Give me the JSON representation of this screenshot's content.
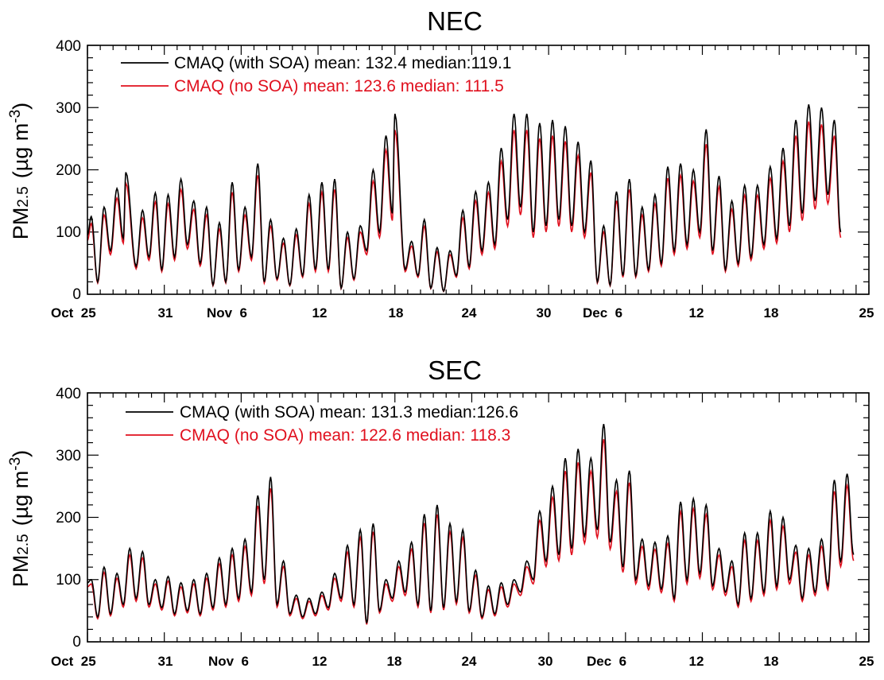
{
  "colors": {
    "with_soa": "#000000",
    "no_soa": "#e0101e",
    "axis": "#000000"
  },
  "chart_data": [
    {
      "type": "line",
      "title": "NEC",
      "ylabel_main": "PM",
      "ylabel_sub": "2.5",
      "ylabel_unit": "(µg m",
      "ylabel_exp": "-3",
      "ylabel_close": ")",
      "ylim": [
        0,
        400
      ],
      "yticks": [
        "0",
        "100",
        "200",
        "300",
        "400"
      ],
      "xlim_days": [
        0,
        61
      ],
      "xtick_labels": [
        "Oct  25",
        "31",
        "Nov  6",
        "12",
        "18",
        "24",
        "30",
        "Dec  6",
        "12",
        "18",
        "25"
      ],
      "legend_position": "top-left",
      "series": [
        {
          "name": "CMAQ (with SOA) mean: 132.4 median:119.1",
          "color": "#000000",
          "peaks": [
            [
              0.3,
              125
            ],
            [
              1.3,
              140
            ],
            [
              2.3,
              170
            ],
            [
              3.0,
              196
            ],
            [
              4.3,
              135
            ],
            [
              5.3,
              163
            ],
            [
              6.3,
              160
            ],
            [
              7.3,
              185
            ],
            [
              8.3,
              150
            ],
            [
              9.3,
              140
            ],
            [
              10.3,
              115
            ],
            [
              11.3,
              180
            ],
            [
              12.3,
              140
            ],
            [
              13.3,
              210
            ],
            [
              14.3,
              120
            ],
            [
              15.3,
              90
            ],
            [
              16.3,
              105
            ],
            [
              17.3,
              160
            ],
            [
              18.3,
              180
            ],
            [
              19.3,
              185
            ],
            [
              20.3,
              100
            ],
            [
              21.3,
              110
            ],
            [
              22.3,
              200
            ],
            [
              23.3,
              255
            ],
            [
              24.0,
              290
            ],
            [
              25.3,
              85
            ],
            [
              26.3,
              120
            ],
            [
              27.3,
              75
            ],
            [
              28.3,
              70
            ],
            [
              29.3,
              135
            ],
            [
              30.3,
              165
            ],
            [
              31.3,
              180
            ],
            [
              32.3,
              235
            ],
            [
              33.3,
              290
            ],
            [
              34.3,
              290
            ],
            [
              35.3,
              275
            ],
            [
              36.3,
              280
            ],
            [
              37.3,
              270
            ],
            [
              38.3,
              245
            ],
            [
              39.3,
              215
            ],
            [
              40.3,
              110
            ],
            [
              41.3,
              165
            ],
            [
              42.3,
              185
            ],
            [
              43.3,
              140
            ],
            [
              44.3,
              160
            ],
            [
              45.3,
              205
            ],
            [
              46.3,
              210
            ],
            [
              47.3,
              200
            ],
            [
              48.3,
              265
            ],
            [
              49.3,
              190
            ],
            [
              50.3,
              150
            ],
            [
              51.3,
              175
            ],
            [
              52.3,
              175
            ],
            [
              53.3,
              205
            ],
            [
              54.3,
              235
            ],
            [
              55.3,
              280
            ],
            [
              56.3,
              305
            ],
            [
              57.3,
              300
            ],
            [
              58.3,
              280
            ]
          ],
          "troughs": [
            [
              0.8,
              20
            ],
            [
              1.8,
              70
            ],
            [
              2.8,
              90
            ],
            [
              3.8,
              45
            ],
            [
              4.8,
              60
            ],
            [
              5.8,
              40
            ],
            [
              6.8,
              60
            ],
            [
              7.8,
              80
            ],
            [
              8.8,
              50
            ],
            [
              9.8,
              15
            ],
            [
              10.8,
              20
            ],
            [
              11.8,
              40
            ],
            [
              12.8,
              60
            ],
            [
              13.8,
              20
            ],
            [
              14.8,
              25
            ],
            [
              15.8,
              15
            ],
            [
              16.8,
              30
            ],
            [
              17.8,
              40
            ],
            [
              18.8,
              40
            ],
            [
              19.8,
              10
            ],
            [
              20.8,
              25
            ],
            [
              21.8,
              70
            ],
            [
              22.8,
              100
            ],
            [
              23.8,
              130
            ],
            [
              24.8,
              40
            ],
            [
              25.8,
              30
            ],
            [
              26.8,
              10
            ],
            [
              27.8,
              5
            ],
            [
              28.8,
              30
            ],
            [
              29.8,
              45
            ],
            [
              30.8,
              70
            ],
            [
              31.8,
              80
            ],
            [
              32.8,
              120
            ],
            [
              33.8,
              140
            ],
            [
              34.8,
              100
            ],
            [
              35.8,
              110
            ],
            [
              36.8,
              120
            ],
            [
              37.8,
              110
            ],
            [
              38.8,
              100
            ],
            [
              39.8,
              20
            ],
            [
              40.8,
              15
            ],
            [
              41.8,
              30
            ],
            [
              42.8,
              30
            ],
            [
              43.8,
              40
            ],
            [
              44.8,
              50
            ],
            [
              45.8,
              70
            ],
            [
              46.8,
              80
            ],
            [
              47.8,
              100
            ],
            [
              48.8,
              70
            ],
            [
              49.8,
              40
            ],
            [
              50.8,
              50
            ],
            [
              51.8,
              60
            ],
            [
              52.8,
              80
            ],
            [
              53.8,
              90
            ],
            [
              54.8,
              110
            ],
            [
              55.8,
              130
            ],
            [
              56.8,
              150
            ],
            [
              57.8,
              160
            ],
            [
              58.8,
              100
            ]
          ]
        },
        {
          "name": "CMAQ (no SOA) mean: 123.6 median: 111.5",
          "color": "#e0101e",
          "scale": 0.91
        }
      ]
    },
    {
      "type": "line",
      "title": "SEC",
      "ylabel_main": "PM",
      "ylabel_sub": "2.5",
      "ylabel_unit": "(µg m",
      "ylabel_exp": "-3",
      "ylabel_close": ")",
      "ylim": [
        0,
        400
      ],
      "yticks": [
        "0",
        "100",
        "200",
        "300",
        "400"
      ],
      "xlim_days": [
        0,
        61
      ],
      "xtick_labels": [
        "Oct  25",
        "31",
        "Nov  6",
        "12",
        "18",
        "24",
        "30",
        "Dec  6",
        "12",
        "18",
        "25"
      ],
      "legend_position": "top-left",
      "series": [
        {
          "name": "CMAQ (with SOA) mean: 131.3 median:126.6",
          "color": "#000000",
          "peaks": [
            [
              0.3,
              100
            ],
            [
              1.3,
              120
            ],
            [
              2.3,
              110
            ],
            [
              3.3,
              150
            ],
            [
              4.3,
              145
            ],
            [
              5.3,
              100
            ],
            [
              6.3,
              105
            ],
            [
              7.3,
              95
            ],
            [
              8.3,
              100
            ],
            [
              9.3,
              110
            ],
            [
              10.3,
              135
            ],
            [
              11.3,
              150
            ],
            [
              12.3,
              165
            ],
            [
              13.3,
              235
            ],
            [
              14.3,
              265
            ],
            [
              15.3,
              130
            ],
            [
              16.3,
              75
            ],
            [
              17.3,
              70
            ],
            [
              18.3,
              80
            ],
            [
              19.3,
              110
            ],
            [
              20.3,
              155
            ],
            [
              21.3,
              180
            ],
            [
              22.3,
              190
            ],
            [
              23.3,
              100
            ],
            [
              24.3,
              130
            ],
            [
              25.3,
              160
            ],
            [
              26.3,
              205
            ],
            [
              27.3,
              220
            ],
            [
              28.3,
              190
            ],
            [
              29.3,
              180
            ],
            [
              30.3,
              115
            ],
            [
              31.3,
              90
            ],
            [
              32.3,
              95
            ],
            [
              33.3,
              100
            ],
            [
              34.3,
              130
            ],
            [
              35.3,
              210
            ],
            [
              36.3,
              250
            ],
            [
              37.3,
              295
            ],
            [
              38.3,
              310
            ],
            [
              39.3,
              295
            ],
            [
              40.3,
              350
            ],
            [
              41.3,
              260
            ],
            [
              42.3,
              275
            ],
            [
              43.3,
              165
            ],
            [
              44.3,
              160
            ],
            [
              45.3,
              170
            ],
            [
              46.3,
              225
            ],
            [
              47.3,
              230
            ],
            [
              48.3,
              220
            ],
            [
              49.3,
              150
            ],
            [
              50.3,
              130
            ],
            [
              51.3,
              175
            ],
            [
              52.3,
              175
            ],
            [
              53.3,
              210
            ],
            [
              54.3,
              200
            ],
            [
              55.3,
              155
            ],
            [
              56.3,
              150
            ],
            [
              57.3,
              165
            ],
            [
              58.3,
              260
            ],
            [
              59.3,
              270
            ]
          ],
          "troughs": [
            [
              0.8,
              40
            ],
            [
              1.8,
              45
            ],
            [
              2.8,
              60
            ],
            [
              3.8,
              70
            ],
            [
              4.8,
              60
            ],
            [
              5.8,
              55
            ],
            [
              6.8,
              45
            ],
            [
              7.8,
              50
            ],
            [
              8.8,
              45
            ],
            [
              9.8,
              55
            ],
            [
              10.8,
              60
            ],
            [
              11.8,
              70
            ],
            [
              12.8,
              80
            ],
            [
              13.8,
              100
            ],
            [
              14.8,
              60
            ],
            [
              15.8,
              45
            ],
            [
              16.8,
              40
            ],
            [
              17.8,
              45
            ],
            [
              18.8,
              55
            ],
            [
              19.8,
              70
            ],
            [
              20.8,
              60
            ],
            [
              21.8,
              30
            ],
            [
              22.8,
              50
            ],
            [
              23.8,
              70
            ],
            [
              24.8,
              80
            ],
            [
              25.8,
              60
            ],
            [
              26.8,
              50
            ],
            [
              27.8,
              55
            ],
            [
              28.8,
              65
            ],
            [
              29.8,
              50
            ],
            [
              30.8,
              40
            ],
            [
              31.8,
              45
            ],
            [
              32.8,
              60
            ],
            [
              33.8,
              80
            ],
            [
              34.8,
              100
            ],
            [
              35.8,
              130
            ],
            [
              36.8,
              140
            ],
            [
              37.8,
              150
            ],
            [
              38.8,
              170
            ],
            [
              39.8,
              180
            ],
            [
              40.8,
              160
            ],
            [
              41.8,
              120
            ],
            [
              42.8,
              100
            ],
            [
              43.8,
              90
            ],
            [
              44.8,
              85
            ],
            [
              45.8,
              70
            ],
            [
              46.8,
              100
            ],
            [
              47.8,
              110
            ],
            [
              48.8,
              90
            ],
            [
              49.8,
              80
            ],
            [
              50.8,
              60
            ],
            [
              51.8,
              70
            ],
            [
              52.8,
              80
            ],
            [
              53.8,
              90
            ],
            [
              54.8,
              100
            ],
            [
              55.8,
              70
            ],
            [
              56.8,
              80
            ],
            [
              57.8,
              90
            ],
            [
              58.8,
              130
            ],
            [
              59.8,
              140
            ]
          ]
        },
        {
          "name": "CMAQ (no SOA) mean: 122.6 median: 118.3",
          "color": "#e0101e",
          "scale": 0.93
        }
      ]
    }
  ]
}
